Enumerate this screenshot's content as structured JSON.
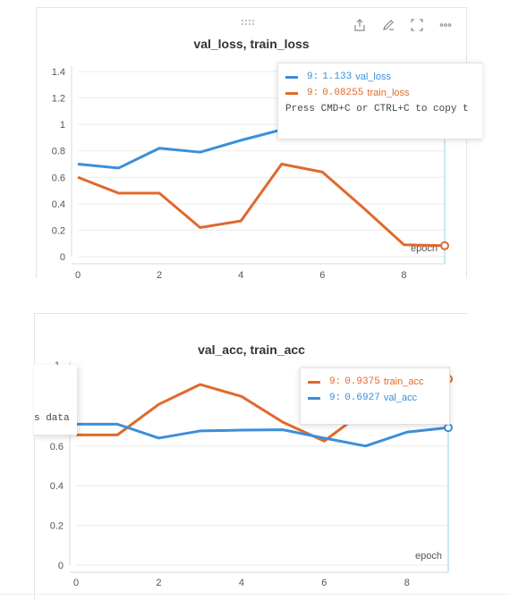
{
  "panels": [
    {
      "title": "val_loss, train_loss",
      "chart_data": {
        "type": "line",
        "title": "val_loss, train_loss",
        "xlabel": "epoch",
        "x": [
          0,
          1,
          2,
          3,
          4,
          5,
          6,
          7,
          8,
          9
        ],
        "xlim": [
          0,
          9
        ],
        "ylim": [
          0,
          1.4
        ],
        "xticks": [
          "0",
          "2",
          "4",
          "6",
          "8"
        ],
        "yticks": [
          "0",
          "0.2",
          "0.4",
          "0.6",
          "0.8",
          "1",
          "1.2",
          "1.4"
        ],
        "series": [
          {
            "name": "val_loss",
            "color": "#3b8fd9",
            "values": [
              0.7,
              0.67,
              0.82,
              0.79,
              0.88,
              0.96,
              1.02,
              1.06,
              1.1,
              1.133
            ]
          },
          {
            "name": "train_loss",
            "color": "#e0692b",
            "values": [
              0.6,
              0.48,
              0.48,
              0.22,
              0.27,
              0.7,
              0.64,
              0.37,
              0.09,
              0.08255
            ]
          }
        ]
      },
      "tooltip": {
        "rows": [
          {
            "step": "9:",
            "value": "1.133",
            "name": "val_loss",
            "color": "#3b8fd9"
          },
          {
            "step": "9:",
            "value": "0.08255",
            "name": "train_loss",
            "color": "#e0692b"
          }
        ],
        "hint": "Press CMD+C or CTRL+C to copy t"
      }
    },
    {
      "title": "val_acc, train_acc",
      "chart_data": {
        "type": "line",
        "title": "val_acc, train_acc",
        "xlabel": "epoch",
        "x": [
          0,
          1,
          2,
          3,
          4,
          5,
          6,
          7,
          8,
          9
        ],
        "xlim": [
          0,
          9
        ],
        "ylim": [
          0,
          1
        ],
        "xticks": [
          "0",
          "2",
          "4",
          "6",
          "8"
        ],
        "yticks": [
          "0",
          "0.2",
          "0.4",
          "0.6"
        ],
        "series": [
          {
            "name": "train_acc",
            "color": "#e0692b",
            "values": [
              0.656,
              0.656,
              0.81,
              0.91,
              0.85,
              0.72,
              0.625,
              0.78,
              0.9,
              0.9375
            ]
          },
          {
            "name": "val_acc",
            "color": "#3b8fd9",
            "values": [
              0.71,
              0.71,
              0.64,
              0.676,
              0.68,
              0.682,
              0.64,
              0.6,
              0.67,
              0.6927
            ]
          }
        ]
      },
      "tooltip": {
        "rows": [
          {
            "step": "9:",
            "value": "0.9375",
            "name": "train_acc",
            "color": "#e0692b"
          },
          {
            "step": "9:",
            "value": "0.6927",
            "name": "val_acc",
            "color": "#3b8fd9"
          }
        ]
      },
      "ghost_tooltip_text": "s data",
      "partial_ytick": "1"
    }
  ],
  "toolbar": {
    "icons": [
      "share-icon",
      "edit-icon",
      "fullscreen-icon",
      "more-icon"
    ],
    "drag_glyph": "⠿⠿"
  }
}
